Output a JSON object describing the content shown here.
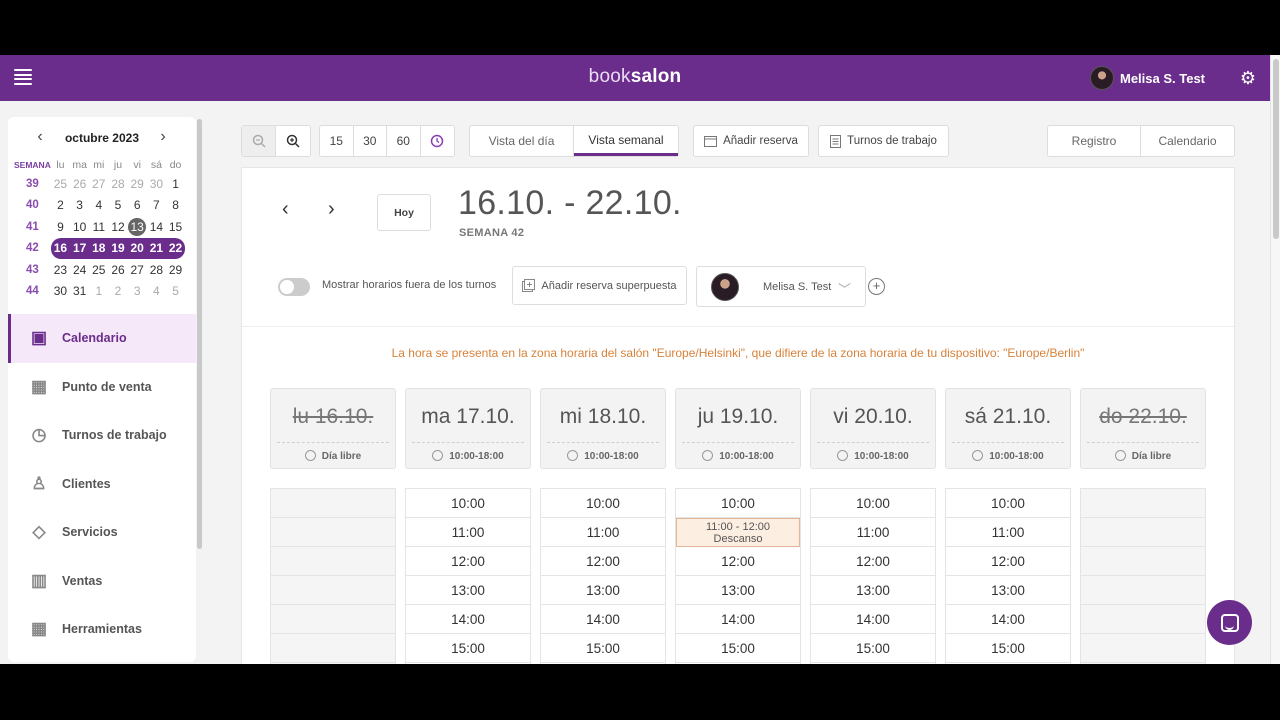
{
  "header": {
    "brand_light": "book",
    "brand_bold": "salon",
    "user_name": "Melisa S. Test"
  },
  "mini_calendar": {
    "title": "octubre 2023",
    "week_header": "SEMANA",
    "weekdays": [
      "lu",
      "ma",
      "mi",
      "ju",
      "vi",
      "sá",
      "do"
    ],
    "weeks": [
      {
        "wk": "39",
        "days": [
          "25",
          "26",
          "27",
          "28",
          "29",
          "30",
          "1"
        ],
        "muted": [
          0,
          1,
          2,
          3,
          4,
          5
        ]
      },
      {
        "wk": "40",
        "days": [
          "2",
          "3",
          "4",
          "5",
          "6",
          "7",
          "8"
        ],
        "muted": []
      },
      {
        "wk": "41",
        "days": [
          "9",
          "10",
          "11",
          "12",
          "13",
          "14",
          "15"
        ],
        "muted": [],
        "today": 4
      },
      {
        "wk": "42",
        "days": [
          "16",
          "17",
          "18",
          "19",
          "20",
          "21",
          "22"
        ],
        "muted": [],
        "selected": true
      },
      {
        "wk": "43",
        "days": [
          "23",
          "24",
          "25",
          "26",
          "27",
          "28",
          "29"
        ],
        "muted": []
      },
      {
        "wk": "44",
        "days": [
          "30",
          "31",
          "1",
          "2",
          "3",
          "4",
          "5"
        ],
        "muted": [
          2,
          3,
          4,
          5,
          6
        ]
      }
    ]
  },
  "nav": [
    {
      "label": "Calendario",
      "icon": "calendar-icon",
      "active": true
    },
    {
      "label": "Punto de venta",
      "icon": "cash-register-icon"
    },
    {
      "label": "Turnos de trabajo",
      "icon": "clock-history-icon"
    },
    {
      "label": "Clientes",
      "icon": "user-heart-icon"
    },
    {
      "label": "Servicios",
      "icon": "diamond-icon"
    },
    {
      "label": "Ventas",
      "icon": "bar-chart-icon"
    },
    {
      "label": "Herramientas",
      "icon": "grid-icon"
    }
  ],
  "toolbar": {
    "intervals": [
      "15",
      "30",
      "60"
    ],
    "view_day": "Vista del día",
    "view_week": "Vista semanal",
    "add_reservation": "Añadir reserva",
    "work_shifts": "Turnos de trabajo",
    "mode_register": "Registro",
    "mode_calendar": "Calendario"
  },
  "panel": {
    "today": "Hoy",
    "range": "16.10. - 22.10.",
    "week": "SEMANA 42",
    "toggle_label": "Mostrar horarios fuera de los turnos",
    "overlap_label": "Añadir reserva superpuesta",
    "staff_name": "Melisa S. Test",
    "tz_notice": "La hora se presenta en la zona horaria del salón \"Europe/Helsinki\", que difiere de la zona horaria de tu dispositivo: \"Europe/Berlin\""
  },
  "days": [
    {
      "name": "lu 16.10.",
      "hours": "Día libre",
      "off": true
    },
    {
      "name": "ma 17.10.",
      "hours": "10:00-18:00",
      "off": false
    },
    {
      "name": "mi 18.10.",
      "hours": "10:00-18:00",
      "off": false
    },
    {
      "name": "ju 19.10.",
      "hours": "10:00-18:00",
      "off": false
    },
    {
      "name": "vi 20.10.",
      "hours": "10:00-18:00",
      "off": false
    },
    {
      "name": "sá 21.10.",
      "hours": "10:00-18:00",
      "off": false
    },
    {
      "name": "do 22.10.",
      "hours": "Día libre",
      "off": true
    }
  ],
  "slots": [
    "10:00",
    "11:00",
    "12:00",
    "13:00",
    "14:00",
    "15:00"
  ],
  "break_slot": {
    "day": 3,
    "time": "11:00 - 12:00",
    "label": "Descanso"
  },
  "colors": {
    "brand": "#6b2d8b",
    "notice": "#d7823a"
  }
}
